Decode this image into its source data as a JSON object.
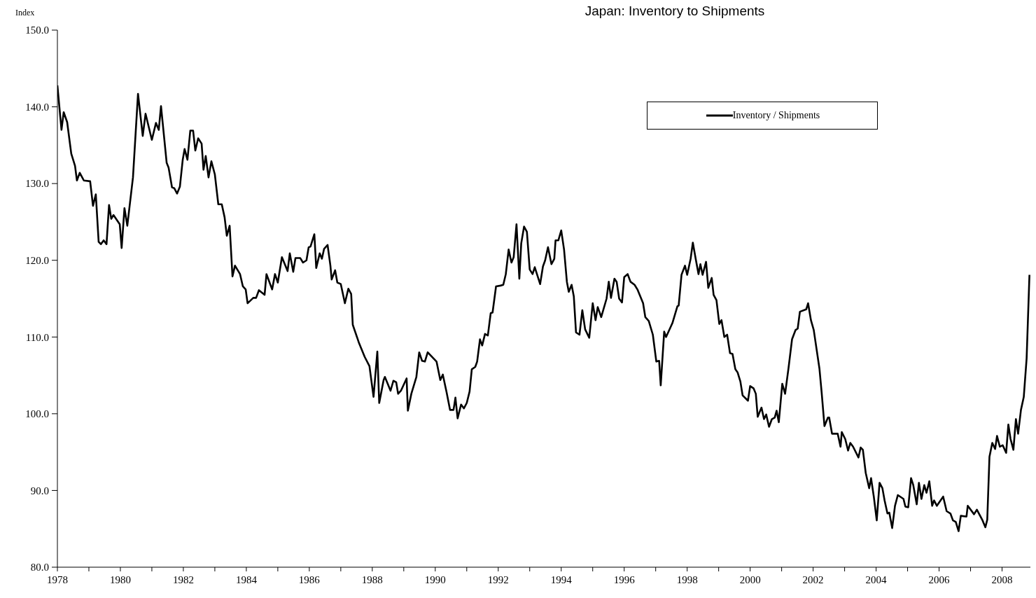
{
  "chart_data": {
    "type": "line",
    "title": "Japan: Inventory to Shipments",
    "ylabel": "Index",
    "x": [
      1978.0,
      1978.02,
      1978.13,
      1978.2,
      1978.31,
      1978.44,
      1978.56,
      1978.62,
      1978.71,
      1978.84,
      1979.04,
      1979.13,
      1979.22,
      1979.31,
      1979.38,
      1979.47,
      1979.56,
      1979.64,
      1979.71,
      1979.78,
      1979.98,
      1980.04,
      1980.13,
      1980.22,
      1980.4,
      1980.56,
      1980.71,
      1980.8,
      1981.0,
      1981.13,
      1981.22,
      1981.29,
      1981.47,
      1981.53,
      1981.64,
      1981.71,
      1981.8,
      1981.89,
      1981.98,
      1982.04,
      1982.13,
      1982.22,
      1982.31,
      1982.38,
      1982.47,
      1982.58,
      1982.64,
      1982.71,
      1982.8,
      1982.89,
      1983.0,
      1983.11,
      1983.22,
      1983.31,
      1983.38,
      1983.47,
      1983.56,
      1983.64,
      1983.8,
      1983.89,
      1983.98,
      1984.04,
      1984.22,
      1984.31,
      1984.4,
      1984.58,
      1984.64,
      1984.82,
      1984.91,
      1985.0,
      1985.13,
      1985.31,
      1985.38,
      1985.49,
      1985.56,
      1985.71,
      1985.8,
      1985.91,
      1985.98,
      1986.04,
      1986.16,
      1986.22,
      1986.33,
      1986.4,
      1986.47,
      1986.58,
      1986.67,
      1986.71,
      1986.82,
      1986.89,
      1987.0,
      1987.13,
      1987.24,
      1987.33,
      1987.38,
      1987.58,
      1987.76,
      1987.91,
      1988.04,
      1988.16,
      1988.22,
      1988.36,
      1988.4,
      1988.58,
      1988.67,
      1988.76,
      1988.82,
      1988.91,
      1989.09,
      1989.13,
      1989.24,
      1989.4,
      1989.49,
      1989.58,
      1989.67,
      1989.76,
      1990.04,
      1990.16,
      1990.24,
      1990.36,
      1990.47,
      1990.58,
      1990.64,
      1990.71,
      1990.82,
      1990.91,
      1991.0,
      1991.09,
      1991.16,
      1991.27,
      1991.33,
      1991.42,
      1991.49,
      1991.58,
      1991.67,
      1991.76,
      1991.82,
      1991.93,
      1992.07,
      1992.16,
      1992.24,
      1992.33,
      1992.42,
      1992.49,
      1992.58,
      1992.67,
      1992.73,
      1992.82,
      1992.91,
      1993.0,
      1993.09,
      1993.16,
      1993.33,
      1993.42,
      1993.49,
      1993.58,
      1993.69,
      1993.78,
      1993.82,
      1993.91,
      1994.0,
      1994.09,
      1994.18,
      1994.24,
      1994.33,
      1994.4,
      1994.47,
      1994.58,
      1994.67,
      1994.76,
      1994.89,
      1995.0,
      1995.09,
      1995.16,
      1995.27,
      1995.44,
      1995.51,
      1995.58,
      1995.69,
      1995.76,
      1995.84,
      1995.93,
      1996.0,
      1996.11,
      1996.2,
      1996.33,
      1996.42,
      1996.6,
      1996.67,
      1996.78,
      1996.91,
      1997.02,
      1997.11,
      1997.16,
      1997.27,
      1997.33,
      1997.53,
      1997.69,
      1997.73,
      1997.82,
      1997.93,
      1998.0,
      1998.11,
      1998.18,
      1998.27,
      1998.36,
      1998.42,
      1998.49,
      1998.6,
      1998.67,
      1998.78,
      1998.84,
      1998.93,
      1999.02,
      1999.09,
      1999.18,
      1999.27,
      1999.36,
      1999.44,
      1999.53,
      1999.6,
      1999.69,
      1999.76,
      1999.93,
      2000.0,
      2000.11,
      2000.18,
      2000.24,
      2000.36,
      2000.44,
      2000.51,
      2000.6,
      2000.69,
      2000.78,
      2000.84,
      2000.91,
      2001.02,
      2001.11,
      2001.22,
      2001.33,
      2001.44,
      2001.51,
      2001.58,
      2001.78,
      2001.84,
      2001.93,
      2002.02,
      2002.2,
      2002.27,
      2002.36,
      2002.47,
      2002.51,
      2002.6,
      2002.78,
      2002.87,
      2002.91,
      2003.02,
      2003.11,
      2003.18,
      2003.27,
      2003.44,
      2003.51,
      2003.58,
      2003.67,
      2003.78,
      2003.84,
      2003.93,
      2004.02,
      2004.11,
      2004.2,
      2004.27,
      2004.36,
      2004.42,
      2004.51,
      2004.6,
      2004.69,
      2004.87,
      2004.93,
      2005.02,
      2005.11,
      2005.18,
      2005.29,
      2005.36,
      2005.44,
      2005.53,
      2005.6,
      2005.69,
      2005.78,
      2005.84,
      2005.93,
      2006.13,
      2006.24,
      2006.36,
      2006.44,
      2006.53,
      2006.62,
      2006.69,
      2006.87,
      2006.91,
      2007.11,
      2007.2,
      2007.38,
      2007.47,
      2007.53,
      2007.6,
      2007.69,
      2007.78,
      2007.84,
      2007.93,
      2008.02,
      2008.13,
      2008.2,
      2008.27,
      2008.36,
      2008.44,
      2008.51,
      2008.6,
      2008.69,
      2008.78,
      2008.87
    ],
    "series": [
      {
        "name": "Inventory / Shipments",
        "color": "#000000",
        "values": [
          142.8,
          141.9,
          137.0,
          139.3,
          138.0,
          133.9,
          132.3,
          130.4,
          131.4,
          130.4,
          130.3,
          127.1,
          128.6,
          122.4,
          122.1,
          122.6,
          122.1,
          127.2,
          125.4,
          125.9,
          124.7,
          121.6,
          126.8,
          124.5,
          130.8,
          141.7,
          136.2,
          139.1,
          135.7,
          137.9,
          137.0,
          140.1,
          132.7,
          132.1,
          129.5,
          129.4,
          128.7,
          129.6,
          133.1,
          134.5,
          133.1,
          136.9,
          136.9,
          134.3,
          135.9,
          135.2,
          131.8,
          133.6,
          130.8,
          132.9,
          131.2,
          127.3,
          127.3,
          125.6,
          123.2,
          124.5,
          117.9,
          119.3,
          118.2,
          116.6,
          116.2,
          114.4,
          115.1,
          115.1,
          116.1,
          115.5,
          118.2,
          116.2,
          118.2,
          117.1,
          120.4,
          118.6,
          120.9,
          118.5,
          120.3,
          120.3,
          119.7,
          120.0,
          121.7,
          121.8,
          123.4,
          119.0,
          120.9,
          120.2,
          121.5,
          122.0,
          119.3,
          117.5,
          118.7,
          117.1,
          116.9,
          114.4,
          116.3,
          115.6,
          111.6,
          109.2,
          107.4,
          106.2,
          102.2,
          108.1,
          101.4,
          104.4,
          104.8,
          103.0,
          104.3,
          104.1,
          102.6,
          103.0,
          104.6,
          100.4,
          102.6,
          104.8,
          108.0,
          106.9,
          106.8,
          108.0,
          106.8,
          104.4,
          105.1,
          102.8,
          100.5,
          100.5,
          102.1,
          99.4,
          101.2,
          100.7,
          101.4,
          102.9,
          105.8,
          106.1,
          106.8,
          109.7,
          108.9,
          110.4,
          110.2,
          113.1,
          113.2,
          116.6,
          116.7,
          116.8,
          118.2,
          121.4,
          119.7,
          120.4,
          124.7,
          117.6,
          122.2,
          124.4,
          123.7,
          118.8,
          118.2,
          119.1,
          116.9,
          119.2,
          120.0,
          121.7,
          119.5,
          120.2,
          122.6,
          122.6,
          123.9,
          121.4,
          117.2,
          115.9,
          116.8,
          115.3,
          110.6,
          110.3,
          113.5,
          111.0,
          109.9,
          114.4,
          112.2,
          113.9,
          112.6,
          115.0,
          117.2,
          115.1,
          117.6,
          117.2,
          115.0,
          114.5,
          117.8,
          118.2,
          117.2,
          116.8,
          116.2,
          114.4,
          112.6,
          112.1,
          110.3,
          106.8,
          106.9,
          103.7,
          110.7,
          110.0,
          111.8,
          114.0,
          114.1,
          118.1,
          119.3,
          118.1,
          120.2,
          122.3,
          120.2,
          118.2,
          119.5,
          118.1,
          119.8,
          116.4,
          117.7,
          115.5,
          114.8,
          111.7,
          112.2,
          110.0,
          110.3,
          107.9,
          107.8,
          105.8,
          105.4,
          104.2,
          102.4,
          101.7,
          103.6,
          103.3,
          102.6,
          99.6,
          100.8,
          99.3,
          99.9,
          98.3,
          99.3,
          99.5,
          100.4,
          98.9,
          103.9,
          102.6,
          106.0,
          109.7,
          110.9,
          111.1,
          113.3,
          113.6,
          114.4,
          112.2,
          110.9,
          105.9,
          102.8,
          98.4,
          99.5,
          99.5,
          97.4,
          97.4,
          95.7,
          97.6,
          96.7,
          95.2,
          96.2,
          95.7,
          94.3,
          95.6,
          95.3,
          92.3,
          90.3,
          91.6,
          89.1,
          86.1,
          91.0,
          90.3,
          88.7,
          87.0,
          87.1,
          85.1,
          88.0,
          89.4,
          88.9,
          87.9,
          87.8,
          91.6,
          90.7,
          88.2,
          91.0,
          88.9,
          90.7,
          89.7,
          91.2,
          88.0,
          88.7,
          88.0,
          89.2,
          87.3,
          87.0,
          86.1,
          85.9,
          84.7,
          86.7,
          86.6,
          88.0,
          86.9,
          87.5,
          86.1,
          85.2,
          86.2,
          94.4,
          96.2,
          95.4,
          97.1,
          95.7,
          95.9,
          94.9,
          98.6,
          96.7,
          95.3,
          99.3,
          97.4,
          100.5,
          102.2,
          107.2,
          118.1
        ]
      }
    ],
    "xlim": [
      1978,
      2008.9
    ],
    "xticks": [
      1978,
      {
        "value": 1979,
        "label": null
      },
      1980,
      {
        "value": 1981,
        "label": null
      },
      1982,
      {
        "value": 1983,
        "label": null
      },
      1984,
      {
        "value": 1985,
        "label": null
      },
      1986,
      {
        "value": 1987,
        "label": null
      },
      1988,
      {
        "value": 1989,
        "label": null
      },
      1990,
      {
        "value": 1991,
        "label": null
      },
      1992,
      {
        "value": 1993,
        "label": null
      },
      1994,
      {
        "value": 1995,
        "label": null
      },
      1996,
      {
        "value": 1997,
        "label": null
      },
      1998,
      {
        "value": 1999,
        "label": null
      },
      2000,
      {
        "value": 2001,
        "label": null
      },
      2002,
      {
        "value": 2003,
        "label": null
      },
      2004,
      {
        "value": 2005,
        "label": null
      },
      2006,
      {
        "value": 2007,
        "label": null
      },
      2008
    ],
    "ylim": [
      80,
      150
    ],
    "yticks": [
      {
        "value": 80,
        "label": "80.0"
      },
      {
        "value": 90,
        "label": "90.0"
      },
      {
        "value": 100,
        "label": "100.0"
      },
      {
        "value": 110,
        "label": "110.0"
      },
      {
        "value": 120,
        "label": "120.0"
      },
      {
        "value": 130,
        "label": "130.0"
      },
      {
        "value": 140,
        "label": "140.0"
      },
      {
        "value": 150,
        "label": "150.0"
      }
    ],
    "grid": false,
    "legend": "top right"
  }
}
